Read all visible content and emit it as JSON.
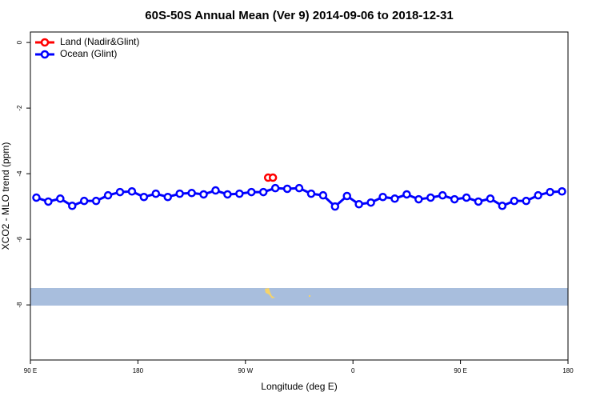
{
  "chart_data": {
    "type": "line",
    "title": "60S-50S Annual Mean (Ver 9)   2014-09-06 to 2018-12-31",
    "xlabel": "Longitude (deg E)",
    "ylabel": "XCO2 - MLO trend (ppm)",
    "xlim": [
      90,
      540
    ],
    "ylim": [
      -9.68,
      0.32
    ],
    "xticks": [
      {
        "value": 90,
        "label": "90 E"
      },
      180,
      {
        "value": 270,
        "label": "90 W"
      },
      {
        "value": 360,
        "label": "0"
      },
      {
        "value": 450,
        "label": "90 E"
      },
      {
        "value": 540,
        "label": "180"
      }
    ],
    "yticks": [
      0,
      -2,
      -4,
      -6,
      -8
    ],
    "legend": "top-left",
    "series": [
      {
        "name": "Land (Nadir&Glint)",
        "color": "#ff0000",
        "x": [
          289,
          293
        ],
        "values": [
          -4.12,
          -4.12
        ]
      },
      {
        "name": "Ocean (Glint)",
        "color": "#0000ff",
        "x": [
          95,
          105,
          115,
          125,
          135,
          145,
          155,
          165,
          175,
          185,
          195,
          205,
          215,
          225,
          235,
          245,
          255,
          265,
          275,
          285,
          295,
          305,
          315,
          325,
          335,
          345,
          355,
          365,
          375,
          385,
          395,
          405,
          415,
          425,
          435,
          445,
          455,
          465,
          475,
          485,
          495,
          505,
          515,
          525,
          535
        ],
        "values": [
          -4.73,
          -4.85,
          -4.76,
          -4.98,
          -4.83,
          -4.83,
          -4.66,
          -4.56,
          -4.54,
          -4.71,
          -4.61,
          -4.71,
          -4.61,
          -4.59,
          -4.63,
          -4.51,
          -4.63,
          -4.61,
          -4.56,
          -4.56,
          -4.44,
          -4.46,
          -4.44,
          -4.61,
          -4.66,
          -5.0,
          -4.68,
          -4.93,
          -4.88,
          -4.71,
          -4.76,
          -4.63,
          -4.78,
          -4.73,
          -4.66,
          -4.78,
          -4.73,
          -4.85,
          -4.76,
          -4.98,
          -4.83,
          -4.83,
          -4.66,
          -4.56,
          -4.54
        ]
      }
    ]
  }
}
